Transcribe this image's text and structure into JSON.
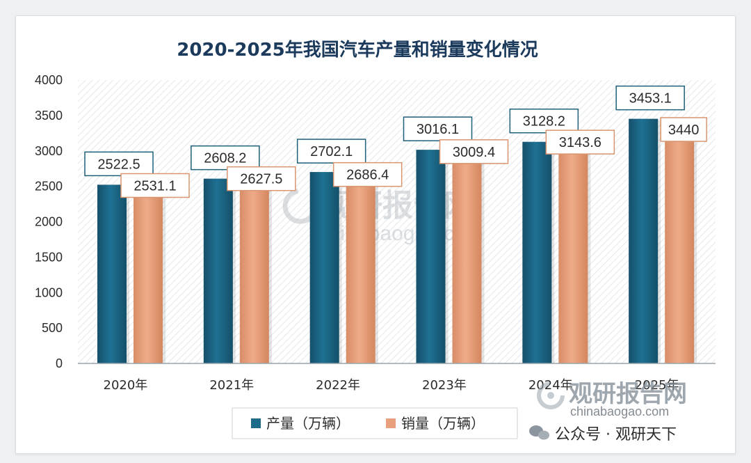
{
  "colors": {
    "series1": "#1d6c8c",
    "series2": "#e8a07c",
    "title": "#1b3a5c",
    "label_border_blue": "#1f5f7a",
    "label_border_orange": "#d9956f",
    "watermark": "#b7bec5"
  },
  "chart_data": {
    "type": "bar",
    "title": "2020-2025年我国汽车产量和销量变化情况",
    "categories": [
      "2020年",
      "2021年",
      "2022年",
      "2023年",
      "2024年",
      "2025年"
    ],
    "series": [
      {
        "name": "产量（万辆）",
        "values": [
          2522.5,
          2608.2,
          2702.1,
          3016.1,
          3128.2,
          3453.1
        ],
        "labels": [
          "2522.5",
          "2608.2",
          "2702.1",
          "3016.1",
          "3128.2",
          "3453.1"
        ]
      },
      {
        "name": "销量（万辆）",
        "values": [
          2531.1,
          2627.5,
          2686.4,
          3009.4,
          3143.6,
          3440
        ],
        "labels": [
          "2531.1",
          "2627.5",
          "2686.4",
          "3009.4",
          "3143.6",
          "3440"
        ]
      }
    ],
    "ylim": [
      0,
      4000
    ],
    "yticks": [
      "0",
      "500",
      "1000",
      "1500",
      "2000",
      "2500",
      "3000",
      "3500",
      "4000"
    ],
    "xlabel": "",
    "ylabel": "",
    "legend": "bottom-center"
  },
  "watermark": {
    "center_main": "观研报告网",
    "center_sub": "chinabaogao.com",
    "corner_main": "观研报告网",
    "corner_sub": "chinabaogao.com",
    "footer": "公众号 · 观研天下"
  }
}
